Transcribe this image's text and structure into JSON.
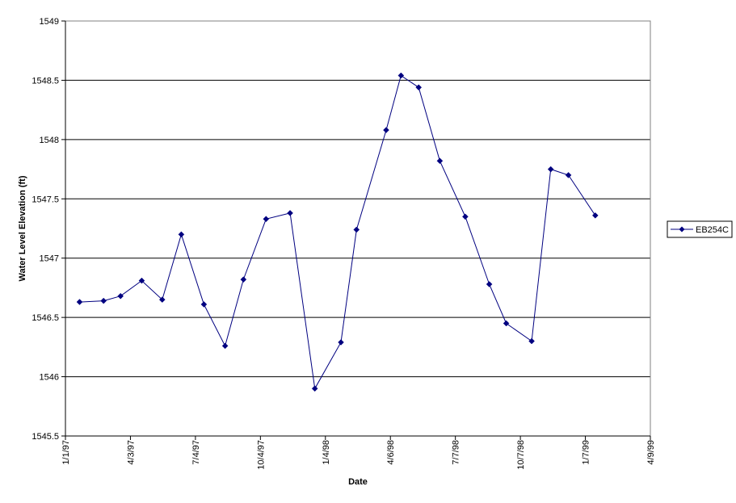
{
  "chart_data": {
    "type": "line",
    "title": "",
    "xlabel": "Date",
    "ylabel": "Water Level Elevation (ft)",
    "x_ticks": [
      "1/1/97",
      "4/3/97",
      "7/4/97",
      "10/4/97",
      "1/4/98",
      "4/6/98",
      "7/7/98",
      "10/7/98",
      "1/7/99",
      "4/9/99"
    ],
    "xlim": [
      "1997-01-01",
      "1999-04-09"
    ],
    "y_ticks": [
      "1545.5",
      "1546",
      "1546.5",
      "1547",
      "1547.5",
      "1548",
      "1548.5",
      "1549"
    ],
    "ylim": [
      1545.5,
      1549
    ],
    "grid": "horizontal major gridlines",
    "legend_position": "right",
    "series": [
      {
        "name": "EB254C",
        "color": "#000080",
        "marker": "diamond",
        "points": [
          {
            "x": "1997-01-21",
            "y": 1546.63
          },
          {
            "x": "1997-02-24",
            "y": 1546.64
          },
          {
            "x": "1997-03-20",
            "y": 1546.68
          },
          {
            "x": "1997-04-19",
            "y": 1546.81
          },
          {
            "x": "1997-05-18",
            "y": 1546.65
          },
          {
            "x": "1997-06-14",
            "y": 1547.2
          },
          {
            "x": "1997-07-16",
            "y": 1546.61
          },
          {
            "x": "1997-08-15",
            "y": 1546.26
          },
          {
            "x": "1997-09-10",
            "y": 1546.82
          },
          {
            "x": "1997-10-12",
            "y": 1547.33
          },
          {
            "x": "1997-11-15",
            "y": 1547.38
          },
          {
            "x": "1997-12-20",
            "y": 1545.9
          },
          {
            "x": "1998-01-26",
            "y": 1546.29
          },
          {
            "x": "1998-02-17",
            "y": 1547.24
          },
          {
            "x": "1998-03-31",
            "y": 1548.08
          },
          {
            "x": "1998-04-21",
            "y": 1548.54
          },
          {
            "x": "1998-05-16",
            "y": 1548.44
          },
          {
            "x": "1998-06-15",
            "y": 1547.82
          },
          {
            "x": "1998-07-21",
            "y": 1547.35
          },
          {
            "x": "1998-08-24",
            "y": 1546.78
          },
          {
            "x": "1998-09-17",
            "y": 1546.45
          },
          {
            "x": "1998-10-23",
            "y": 1546.3
          },
          {
            "x": "1998-11-19",
            "y": 1547.75
          },
          {
            "x": "1998-12-14",
            "y": 1547.7
          },
          {
            "x": "1999-01-21",
            "y": 1547.36
          }
        ]
      }
    ]
  }
}
